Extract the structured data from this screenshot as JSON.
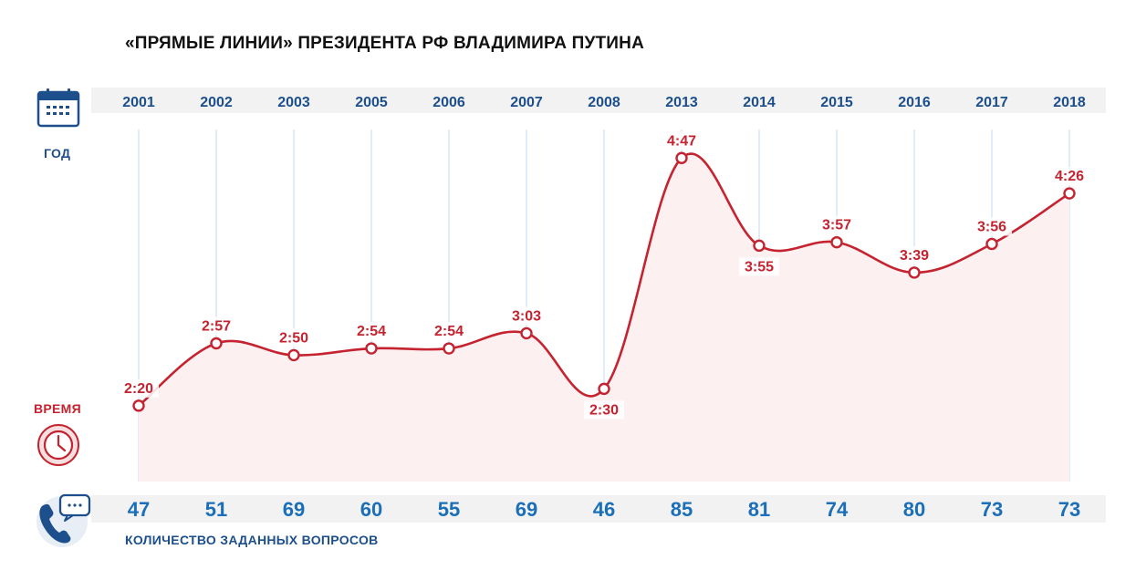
{
  "title": "«ПРЯМЫЕ ЛИНИИ» ПРЕЗИДЕНТА РФ ВЛАДИМИРА ПУТИНА",
  "labels": {
    "year": "ГОД",
    "time": "ВРЕМЯ",
    "questions": "КОЛИЧЕСТВО ЗАДАННЫХ ВОПРОСОВ"
  },
  "icons": {
    "year": "calendar-icon",
    "time": "clock-icon",
    "questions": "phone-chat-icon"
  },
  "colors": {
    "line": "#c4232f",
    "area": "#fdf0f1",
    "year_text": "#1d4f8c",
    "count_text": "#1a6fb8",
    "band": "#f2f2f2",
    "gridline": "#cfe3f3"
  },
  "chart_data": {
    "type": "line",
    "title": "«ПРЯМЫЕ ЛИНИИ» ПРЕЗИДЕНТА РФ ВЛАДИМИРА ПУТИНА",
    "categories": [
      "2001",
      "2002",
      "2003",
      "2005",
      "2006",
      "2007",
      "2008",
      "2013",
      "2014",
      "2015",
      "2016",
      "2017",
      "2018"
    ],
    "series": [
      {
        "name": "ВРЕМЯ",
        "values": [
          140,
          177,
          170,
          174,
          174,
          183,
          150,
          287,
          235,
          237,
          219,
          236,
          266
        ],
        "labels": [
          "2:20",
          "2:57",
          "2:50",
          "2:54",
          "2:54",
          "3:03",
          "2:30",
          "4:47",
          "3:55",
          "3:57",
          "3:39",
          "3:56",
          "4:26"
        ]
      },
      {
        "name": "КОЛИЧЕСТВО ЗАДАННЫХ ВОПРОСОВ",
        "values": [
          47,
          51,
          69,
          60,
          55,
          69,
          46,
          85,
          81,
          74,
          80,
          73,
          73
        ]
      }
    ],
    "ylim": [
      95,
      305
    ],
    "grid": "vertical"
  }
}
